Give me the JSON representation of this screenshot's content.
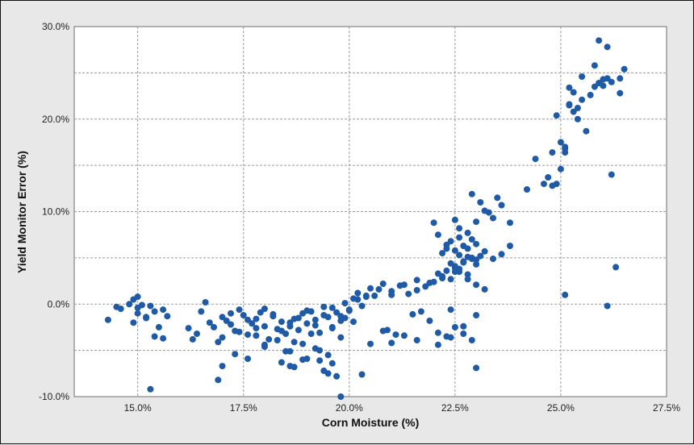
{
  "chart_data": {
    "type": "scatter",
    "title": "",
    "xlabel": "Corn Moisture (%)",
    "ylabel": "Yield Monitor Error (%)",
    "xlim": [
      13.5,
      27.5
    ],
    "ylim": [
      -10,
      30
    ],
    "x_ticks": [
      "15.0%",
      "17.5%",
      "20.0%",
      "22.5%",
      "25.0%",
      "27.5%"
    ],
    "x_tick_values": [
      15.0,
      17.5,
      20.0,
      22.5,
      25.0,
      27.5
    ],
    "y_ticks": [
      "30.0%",
      "20.0%",
      "10.0%",
      "0.0%",
      "-10.0%"
    ],
    "y_tick_values": [
      30,
      20,
      10,
      0,
      -10
    ],
    "grid": true,
    "point_color": "#1f5aa6",
    "x": [
      14.3,
      14.5,
      14.6,
      14.8,
      14.9,
      15.0,
      15.0,
      15.1,
      15.2,
      15.3,
      15.4,
      15.5,
      15.6,
      15.7,
      15.0,
      14.9,
      15.4,
      15.6,
      15.3,
      15.2,
      16.2,
      16.4,
      16.5,
      16.7,
      16.8,
      17.0,
      17.1,
      17.2,
      17.3,
      17.4,
      17.5,
      17.6,
      17.7,
      17.8,
      17.9,
      18.0,
      18.1,
      18.2,
      18.3,
      18.4,
      16.3,
      16.6,
      16.9,
      17.0,
      17.2,
      17.4,
      17.6,
      17.8,
      18.0,
      18.2,
      18.4,
      18.6,
      18.8,
      19.0,
      19.2,
      19.4,
      19.6,
      19.8,
      20.0,
      20.2,
      18.5,
      18.6,
      18.7,
      18.8,
      18.9,
      19.0,
      19.1,
      19.2,
      19.3,
      19.4,
      19.5,
      19.6,
      19.7,
      19.8,
      19.9,
      20.0,
      20.1,
      20.2,
      20.3,
      20.4,
      18.0,
      18.3,
      18.6,
      18.9,
      19.2,
      19.5,
      19.8,
      20.1,
      20.4,
      20.7,
      21.0,
      21.3,
      21.6,
      21.9,
      22.2,
      22.5,
      18.4,
      18.7,
      19.0,
      19.3,
      20.5,
      20.6,
      20.8,
      21.0,
      21.2,
      21.4,
      21.6,
      21.8,
      22.0,
      22.1,
      22.2,
      22.3,
      22.4,
      22.5,
      22.6,
      22.7,
      22.8,
      22.9,
      23.0,
      23.1,
      22.2,
      22.3,
      22.4,
      22.5,
      22.6,
      22.7,
      22.8,
      22.9,
      23.0,
      22.4,
      22.6,
      22.8,
      23.0,
      23.2,
      23.4,
      23.6,
      23.8,
      22.5,
      22.7,
      22.9,
      22.0,
      22.1,
      22.3,
      22.5,
      22.6,
      22.8,
      23.0,
      23.1,
      23.3,
      23.5,
      23.6,
      23.8,
      22.9,
      23.2,
      23.4,
      22.6,
      22.8,
      23.0,
      23.2,
      22.4,
      19.5,
      19.7,
      19.6,
      19.4,
      19.3,
      19.8,
      18.6,
      18.9,
      20.3,
      20.9,
      21.1,
      21.7,
      21.5,
      22.3,
      22.1,
      22.5,
      22.7,
      23.0,
      22.9,
      21.0,
      24.2,
      24.4,
      24.6,
      24.7,
      24.8,
      24.9,
      25.0,
      25.1,
      25.2,
      25.2,
      25.3,
      25.4,
      25.5,
      25.6,
      25.8,
      25.9,
      26.0,
      26.1,
      26.2,
      26.4,
      26.5,
      26.4,
      26.1,
      26.0,
      25.9,
      25.8,
      25.7,
      25.5,
      25.4,
      25.3,
      25.2,
      25.1,
      25.0,
      24.9,
      24.8,
      25.1,
      26.2,
      26.3,
      25.1,
      26.1,
      16.9,
      17.0,
      17.3,
      17.6,
      17.8,
      18.0,
      18.5,
      18.7,
      19.1,
      19.6,
      19.9,
      20.5,
      20.8,
      21.3,
      21.6,
      21.9,
      22.1,
      22.4,
      22.7,
      23.0
    ],
    "y": [
      -1.7,
      -0.3,
      -0.5,
      0.0,
      0.5,
      0.8,
      -0.4,
      -0.1,
      -1.5,
      -0.2,
      -3.5,
      -2.5,
      -0.6,
      -1.3,
      -1.0,
      -2.0,
      -0.8,
      -3.7,
      -9.2,
      -1.4,
      -2.6,
      -3.2,
      -0.8,
      -2.0,
      -2.5,
      -3.6,
      -1.8,
      -1.0,
      -2.9,
      -0.6,
      -1.2,
      -3.3,
      -2.1,
      -1.6,
      -0.9,
      -2.4,
      -3.8,
      -1.3,
      -2.7,
      -1.9,
      -3.8,
      0.2,
      -4.1,
      -1.4,
      -2.2,
      -3.0,
      -1.7,
      -2.6,
      -0.5,
      -1.1,
      -2.9,
      -2.0,
      -1.5,
      -0.7,
      -2.3,
      -1.2,
      -0.4,
      -1.8,
      -0.6,
      0.5,
      -3.2,
      -2.4,
      -1.6,
      -2.8,
      -1.0,
      -2.1,
      -0.8,
      -1.7,
      -3.1,
      -0.3,
      -1.4,
      -2.5,
      -0.9,
      -1.3,
      0.1,
      -0.7,
      0.6,
      1.2,
      -0.2,
      0.9,
      -4.6,
      -3.9,
      -5.1,
      -4.3,
      -4.8,
      -5.5,
      -3.6,
      -1.9,
      0.8,
      1.6,
      1.0,
      2.1,
      1.5,
      2.3,
      2.8,
      3.5,
      -6.3,
      -6.8,
      -5.9,
      -6.1,
      1.7,
      0.9,
      2.2,
      1.4,
      2.0,
      1.1,
      2.6,
      1.9,
      2.4,
      3.3,
      3.0,
      3.6,
      2.7,
      4.1,
      3.8,
      4.5,
      3.2,
      4.9,
      4.3,
      5.2,
      5.5,
      6.0,
      6.8,
      5.8,
      7.2,
      6.3,
      5.1,
      7.0,
      6.5,
      4.4,
      5.3,
      6.0,
      4.8,
      5.7,
      4.9,
      5.4,
      6.3,
      3.9,
      4.6,
      5.0,
      8.8,
      7.5,
      6.4,
      9.1,
      8.2,
      7.7,
      8.9,
      11.0,
      9.9,
      11.5,
      10.7,
      8.8,
      11.9,
      10.1,
      9.3,
      3.5,
      2.7,
      2.1,
      1.6,
      -0.6,
      -7.5,
      -7.8,
      -6.4,
      -7.2,
      -5.0,
      -10.0,
      -6.7,
      -6.0,
      -7.6,
      -2.8,
      -3.3,
      -0.8,
      -1.1,
      -3.5,
      -4.4,
      -2.5,
      -3.2,
      -6.9,
      -3.9,
      -4.2,
      12.4,
      15.7,
      13.0,
      13.7,
      16.4,
      20.4,
      14.6,
      16.8,
      21.5,
      23.4,
      22.9,
      20.0,
      24.6,
      18.7,
      25.8,
      28.5,
      24.3,
      27.8,
      24.0,
      24.4,
      25.4,
      22.8,
      24.4,
      23.6,
      23.9,
      23.5,
      22.6,
      22.1,
      21.2,
      20.8,
      21.6,
      17.0,
      17.5,
      13.0,
      12.8,
      16.4,
      14.0,
      4.0,
      1.0,
      -0.2,
      -8.2,
      -6.7,
      -5.4,
      -5.9,
      -3.4,
      -4.4,
      -5.1,
      -4.1,
      -3.2,
      -2.6,
      -1.5,
      -4.3,
      -2.9,
      -3.4,
      -3.9,
      -1.8,
      -3.1,
      -3.6,
      -2.4,
      -1.2
    ]
  }
}
